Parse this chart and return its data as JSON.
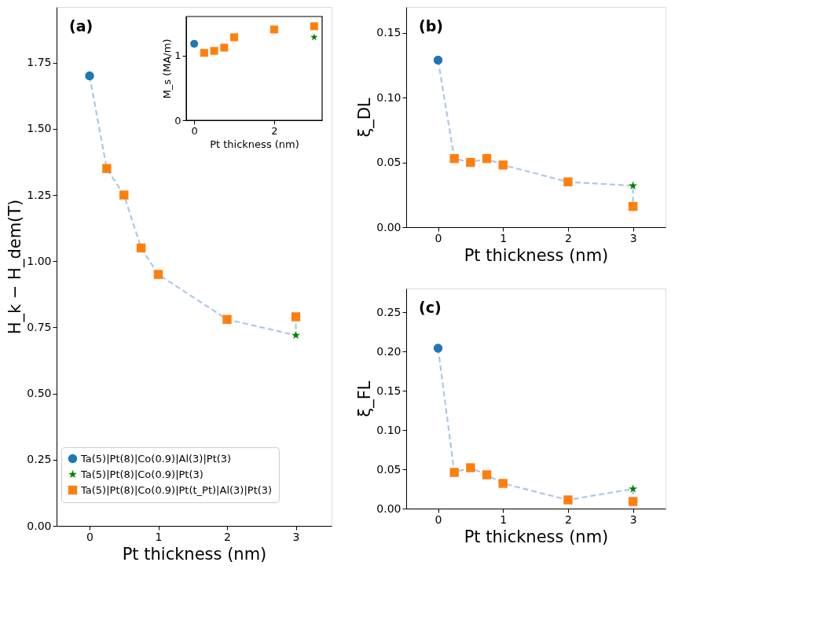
{
  "chart_data": [
    {
      "type": "scatter",
      "xlabel": "Pt thickness (nm)",
      "ylabel": "H_k − H_dem(T)",
      "annotations": [
        "(a)"
      ],
      "xlim": [
        -0.48,
        3.52
      ],
      "ylim": [
        0,
        1.96
      ],
      "xticks": [
        0,
        1,
        2,
        3
      ],
      "yticks": [
        {
          "value": 0,
          "label": "0.00"
        },
        0.25,
        {
          "value": 0.5,
          "label": "0.50"
        },
        0.75,
        {
          "value": 1,
          "label": "1.00"
        },
        1.25,
        {
          "value": 1.5,
          "label": "1.50"
        },
        1.75
      ],
      "grid": false,
      "legend": "bottom left",
      "series": [
        {
          "type": "line",
          "color": "#aec7e8",
          "line_style": "dashed",
          "marker": "none",
          "x": [
            0,
            0.25,
            0.5,
            0.75,
            1,
            2,
            3,
            3
          ],
          "values": [
            1.7,
            1.35,
            1.25,
            1.05,
            0.95,
            0.78,
            0.72,
            0.79
          ]
        },
        {
          "name": "Ta(5)|Pt(8)|Co(0.9)|Al(3)|Pt(3)",
          "color": "#1f77b4",
          "marker": "circle",
          "x": [
            0
          ],
          "values": [
            1.7
          ]
        },
        {
          "name": "Ta(5)|Pt(8)|Co(0.9)|Pt(3)",
          "color": "#008000",
          "marker": "star",
          "x": [
            3
          ],
          "values": [
            0.72
          ]
        },
        {
          "name": "Ta(5)|Pt(8)|Co(0.9)|Pt(t_Pt)|Al(3)|Pt(3)",
          "color": "#ff7f0e",
          "marker": "square",
          "x": [
            0.25,
            0.5,
            0.75,
            1,
            2,
            3
          ],
          "values": [
            1.35,
            1.25,
            1.05,
            0.95,
            0.78,
            0.79
          ]
        }
      ]
    },
    {
      "type": "scatter",
      "xlabel": "Pt thickness (nm)",
      "ylabel": "M_s (MA/m)",
      "xlim": [
        -0.2,
        3.2
      ],
      "ylim": [
        0,
        1.6
      ],
      "xticks": [
        0,
        2
      ],
      "yticks": [
        0,
        1
      ],
      "grid": false,
      "series": [
        {
          "color": "#1f77b4",
          "marker": "circle",
          "x": [
            0
          ],
          "values": [
            1.18
          ]
        },
        {
          "color": "#008000",
          "marker": "star",
          "x": [
            3
          ],
          "values": [
            1.28
          ]
        },
        {
          "color": "#ff7f0e",
          "marker": "square",
          "x": [
            0.25,
            0.5,
            0.75,
            1,
            2,
            3
          ],
          "values": [
            1.04,
            1.07,
            1.12,
            1.28,
            1.4,
            1.45
          ]
        }
      ]
    },
    {
      "type": "scatter",
      "xlabel": "Pt thickness (nm)",
      "ylabel": "ξ_DL",
      "annotations": [
        "(b)"
      ],
      "xlim": [
        -0.49,
        3.5
      ],
      "ylim": [
        0,
        0.17
      ],
      "xticks": [
        0,
        1,
        2,
        3
      ],
      "yticks": [
        {
          "value": 0,
          "label": "0.00"
        },
        0.05,
        {
          "value": 0.1,
          "label": "0.10"
        },
        0.15
      ],
      "grid": false,
      "series": [
        {
          "type": "line",
          "color": "#aec7e8",
          "line_style": "dashed",
          "marker": "none",
          "x": [
            0,
            0.25,
            0.5,
            0.75,
            1,
            2,
            3,
            3
          ],
          "values": [
            0.129,
            0.053,
            0.05,
            0.053,
            0.048,
            0.035,
            0.032,
            0.016
          ]
        },
        {
          "color": "#1f77b4",
          "marker": "circle",
          "x": [
            0
          ],
          "values": [
            0.129
          ]
        },
        {
          "color": "#008000",
          "marker": "star",
          "x": [
            3
          ],
          "values": [
            0.032
          ]
        },
        {
          "color": "#ff7f0e",
          "marker": "square",
          "x": [
            0.25,
            0.5,
            0.75,
            1,
            2,
            3
          ],
          "values": [
            0.053,
            0.05,
            0.053,
            0.048,
            0.035,
            0.016
          ]
        }
      ]
    },
    {
      "type": "scatter",
      "xlabel": "Pt thickness (nm)",
      "ylabel": "ξ_FL",
      "annotations": [
        "(c)"
      ],
      "xlim": [
        -0.49,
        3.5
      ],
      "ylim": [
        0,
        0.28
      ],
      "xticks": [
        0,
        1,
        2,
        3
      ],
      "yticks": [
        {
          "value": 0,
          "label": "0.00"
        },
        0.05,
        {
          "value": 0.1,
          "label": "0.10"
        },
        0.15,
        {
          "value": 0.2,
          "label": "0.20"
        },
        0.25
      ],
      "grid": false,
      "series": [
        {
          "type": "line",
          "color": "#aec7e8",
          "line_style": "dashed",
          "marker": "none",
          "x": [
            0,
            0.25,
            0.5,
            0.75,
            1,
            2,
            3,
            3
          ],
          "values": [
            0.204,
            0.046,
            0.052,
            0.043,
            0.032,
            0.011,
            0.025,
            0.009
          ]
        },
        {
          "color": "#1f77b4",
          "marker": "circle",
          "x": [
            0
          ],
          "values": [
            0.204
          ]
        },
        {
          "color": "#008000",
          "marker": "star",
          "x": [
            3
          ],
          "values": [
            0.025
          ]
        },
        {
          "color": "#ff7f0e",
          "marker": "square",
          "x": [
            0.25,
            0.5,
            0.75,
            1,
            2,
            3
          ],
          "values": [
            0.046,
            0.052,
            0.043,
            0.032,
            0.011,
            0.009
          ]
        }
      ]
    }
  ]
}
